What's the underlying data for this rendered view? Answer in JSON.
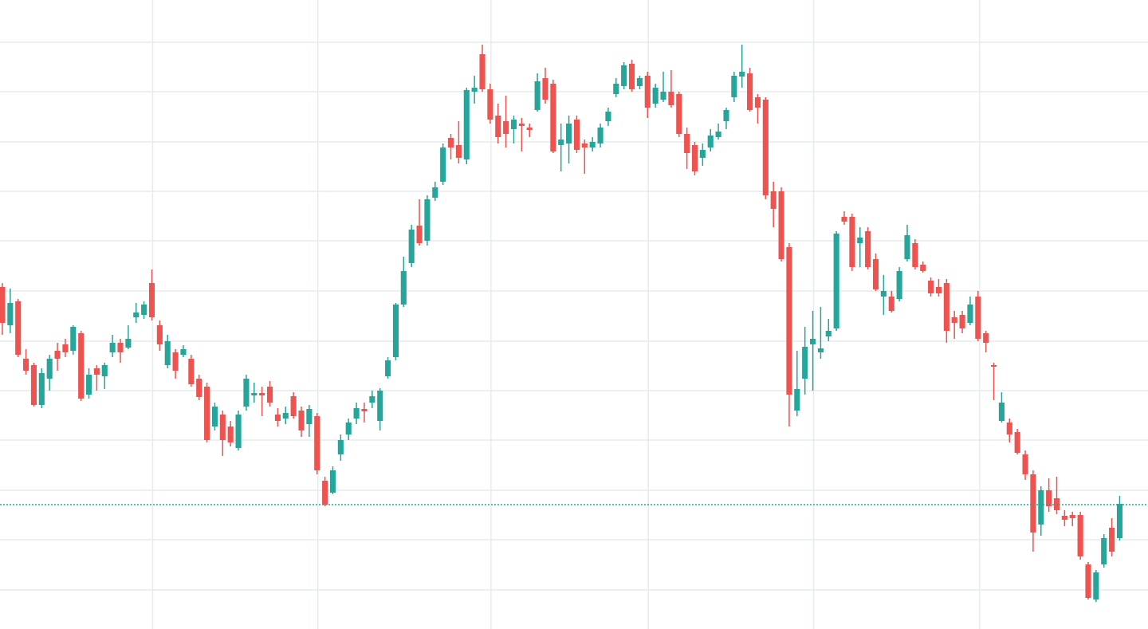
{
  "chart_data": {
    "type": "candlestick",
    "up_color": "#26a69a",
    "down_color": "#ef5350",
    "grid": true,
    "grid_color": "#e5ecef",
    "price_line": 156,
    "price_line_color": "#26a69a",
    "xlim": [
      -0.3,
      145.6
    ],
    "xticks": [
      19.1,
      40.1,
      62.1,
      82.1,
      103.1,
      124.2
    ],
    "ylim": [
      0,
      789
    ],
    "yticks": [
      49,
      112,
      174,
      237,
      299,
      361,
      424,
      487,
      549,
      611,
      674,
      736
    ],
    "x": [
      0,
      1,
      2,
      3,
      4,
      5,
      6,
      7,
      8,
      9,
      10,
      11,
      12,
      13,
      14,
      15,
      16,
      17,
      18,
      19,
      20,
      21,
      22,
      23,
      24,
      25,
      26,
      27,
      28,
      29,
      30,
      31,
      32,
      33,
      34,
      35,
      36,
      37,
      38,
      39,
      40,
      41,
      42,
      43,
      44,
      45,
      46,
      47,
      48,
      49,
      50,
      51,
      52,
      53,
      54,
      55,
      56,
      57,
      58,
      59,
      60,
      61,
      62,
      63,
      64,
      65,
      66,
      67,
      68,
      69,
      70,
      71,
      72,
      73,
      74,
      75,
      76,
      77,
      78,
      79,
      80,
      81,
      82,
      83,
      84,
      85,
      86,
      87,
      88,
      89,
      90,
      91,
      92,
      93,
      94,
      95,
      96,
      97,
      98,
      99,
      100,
      101,
      102,
      103,
      104,
      105,
      106,
      107,
      108,
      109,
      110,
      111,
      112,
      113,
      114,
      115,
      116,
      117,
      118,
      119,
      120,
      121,
      122,
      123,
      124,
      125,
      126,
      127,
      128,
      129,
      130,
      131,
      132,
      133,
      134,
      135,
      136,
      137,
      138,
      139,
      140,
      141,
      142
    ],
    "open": [
      429,
      381,
      411,
      339,
      331,
      281,
      314,
      349,
      357,
      349,
      371,
      294,
      327,
      317,
      347,
      359,
      353,
      391,
      394,
      434,
      381,
      331,
      347,
      344,
      339,
      314,
      304,
      254,
      269,
      254,
      227,
      279,
      293,
      296,
      304,
      269,
      264,
      292,
      274,
      257,
      267,
      186,
      171,
      219,
      244,
      264,
      276,
      284,
      261,
      317,
      341,
      407,
      459,
      506,
      487,
      541,
      561,
      616,
      607,
      589,
      674,
      721,
      677,
      644,
      637,
      627,
      634,
      629,
      651,
      691,
      684,
      607,
      609,
      639,
      609,
      604,
      609,
      637,
      671,
      681,
      709,
      681,
      694,
      659,
      664,
      674,
      671,
      621,
      607,
      591,
      604,
      617,
      637,
      667,
      693,
      697,
      667,
      664,
      549,
      549,
      479,
      274,
      314,
      357,
      347,
      367,
      377,
      517,
      517,
      484,
      499,
      464,
      417,
      417,
      414,
      464,
      484,
      457,
      437,
      429,
      434,
      391,
      394,
      384,
      417,
      371,
      331,
      261,
      259,
      247,
      219,
      194,
      131,
      174,
      164,
      142,
      143,
      143,
      81,
      37,
      81,
      127,
      114
    ],
    "high": [
      434,
      427,
      414,
      351,
      334,
      327,
      344,
      359,
      364,
      381,
      374,
      327,
      331,
      334,
      369,
      364,
      381,
      409,
      411,
      451,
      387,
      369,
      351,
      356,
      344,
      319,
      309,
      284,
      274,
      261,
      274,
      319,
      309,
      304,
      311,
      277,
      279,
      297,
      279,
      281,
      271,
      191,
      204,
      244,
      264,
      284,
      284,
      299,
      302,
      341,
      409,
      467,
      507,
      539,
      544,
      561,
      609,
      621,
      637,
      679,
      694,
      733,
      684,
      659,
      669,
      644,
      641,
      634,
      697,
      704,
      689,
      634,
      644,
      644,
      614,
      617,
      634,
      654,
      691,
      711,
      714,
      694,
      699,
      684,
      699,
      701,
      674,
      629,
      611,
      609,
      627,
      634,
      654,
      699,
      733,
      704,
      671,
      667,
      561,
      554,
      484,
      349,
      379,
      399,
      404,
      389,
      499,
      524,
      521,
      504,
      504,
      471,
      444,
      424,
      454,
      507,
      489,
      461,
      441,
      439,
      439,
      399,
      399,
      417,
      424,
      374,
      334,
      297,
      264,
      251,
      224,
      199,
      179,
      189,
      191,
      149,
      147,
      147,
      84,
      74,
      119,
      139,
      167
    ],
    "low": [
      369,
      371,
      341,
      319,
      279,
      277,
      299,
      324,
      341,
      344,
      286,
      289,
      299,
      301,
      341,
      334,
      351,
      384,
      389,
      387,
      349,
      327,
      314,
      341,
      304,
      287,
      234,
      249,
      217,
      229,
      224,
      274,
      284,
      267,
      279,
      254,
      257,
      264,
      241,
      241,
      194,
      154,
      169,
      211,
      237,
      257,
      259,
      277,
      249,
      314,
      337,
      404,
      454,
      481,
      481,
      537,
      557,
      589,
      584,
      583,
      659,
      674,
      634,
      609,
      604,
      609,
      599,
      617,
      649,
      659,
      597,
      574,
      584,
      597,
      571,
      599,
      604,
      631,
      667,
      677,
      674,
      677,
      641,
      654,
      661,
      654,
      617,
      577,
      569,
      581,
      599,
      614,
      627,
      661,
      679,
      649,
      634,
      539,
      504,
      461,
      254,
      267,
      294,
      299,
      339,
      361,
      374,
      507,
      449,
      454,
      451,
      424,
      394,
      397,
      411,
      461,
      451,
      447,
      417,
      417,
      359,
      364,
      371,
      381,
      361,
      347,
      287,
      259,
      234,
      219,
      187,
      97,
      117,
      147,
      144,
      129,
      129,
      87,
      37,
      34,
      77,
      91,
      111
    ],
    "close": [
      384,
      409,
      344,
      324,
      281,
      321,
      339,
      339,
      347,
      379,
      289,
      319,
      319,
      331,
      359,
      347,
      364,
      397,
      407,
      391,
      357,
      361,
      324,
      351,
      307,
      291,
      237,
      279,
      237,
      234,
      269,
      314,
      296,
      293,
      284,
      261,
      271,
      267,
      249,
      276,
      199,
      156,
      199,
      237,
      259,
      277,
      273,
      292,
      299,
      337,
      407,
      449,
      501,
      484,
      539,
      554,
      604,
      604,
      591,
      676,
      679,
      677,
      639,
      617,
      621,
      639,
      631,
      626,
      687,
      664,
      599,
      614,
      634,
      601,
      604,
      611,
      629,
      649,
      684,
      707,
      677,
      691,
      654,
      679,
      674,
      657,
      621,
      597,
      574,
      601,
      619,
      624,
      651,
      694,
      699,
      651,
      654,
      544,
      527,
      464,
      294,
      301,
      354,
      364,
      352,
      374,
      496,
      511,
      454,
      491,
      454,
      426,
      424,
      399,
      449,
      494,
      454,
      449,
      421,
      421,
      374,
      384,
      377,
      407,
      364,
      359,
      329,
      284,
      244,
      221,
      194,
      121,
      174,
      154,
      149,
      137,
      139,
      91,
      39,
      71,
      114,
      97,
      157
    ]
  }
}
